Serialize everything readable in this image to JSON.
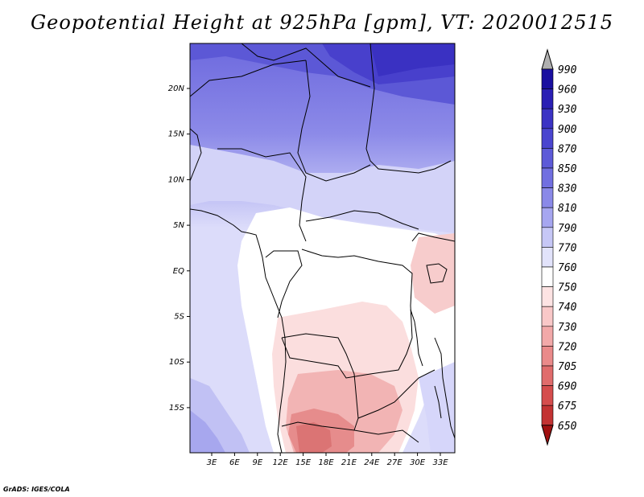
{
  "title": "Geopotential Height at 925hPa [gpm], VT: 2020012515",
  "credit": "GrADS: IGES/COLA",
  "lat_ticks": [
    "20N",
    "15N",
    "10N",
    "5N",
    "EQ",
    "5S",
    "10S",
    "15S"
  ],
  "lon_ticks": [
    "3E",
    "6E",
    "9E",
    "12E",
    "15E",
    "18E",
    "21E",
    "24E",
    "27E",
    "30E",
    "33E"
  ],
  "colorbar": {
    "levels": [
      "990",
      "960",
      "930",
      "900",
      "870",
      "850",
      "830",
      "810",
      "790",
      "770",
      "760",
      "750",
      "740",
      "730",
      "720",
      "705",
      "690",
      "675",
      "650"
    ],
    "colors": [
      "#1a0fa0",
      "#2a1fb4",
      "#3b33c4",
      "#4a45cf",
      "#5d5ad8",
      "#716fe0",
      "#8a89e8",
      "#a6a6f0",
      "#c6c7f6",
      "#e2e3fb",
      "#ffffff",
      "#fde3e3",
      "#f9c8c8",
      "#f2a9a9",
      "#ea8a8a",
      "#e06c6c",
      "#d54d4d",
      "#c33333",
      "#a81818"
    ],
    "over_color": "#b0b0b0",
    "under_color": "#a01010"
  }
}
